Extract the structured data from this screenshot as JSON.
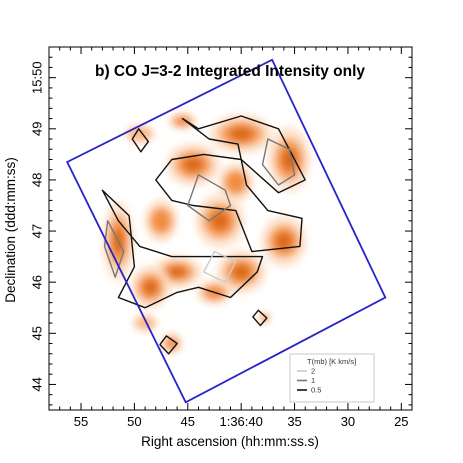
{
  "chart_data": {
    "type": "heatmap",
    "title": "b) CO J=3-2 Integrated Intensity only",
    "xlabel": "Right ascension (hh:mm:ss.s)",
    "ylabel": "Declination (ddd:mm:ss)",
    "x_ticks": [
      "55",
      "50",
      "45",
      "1:36:40",
      "35",
      "30",
      "25"
    ],
    "y_ticks": [
      "44",
      "45",
      "46",
      "47",
      "48",
      "49",
      "15:50"
    ],
    "x_tick_seconds": [
      55,
      50,
      45,
      40,
      35,
      30,
      25
    ],
    "y_tick_minutes": [
      44,
      45,
      46,
      47,
      48,
      49,
      50
    ],
    "xlim_seconds": [
      58,
      24
    ],
    "ylim_minutes": [
      43.5,
      50.6
    ],
    "x_axis_reversed": true,
    "legend": {
      "title": "T(mb) [K km/s]",
      "placement": "bottom-right",
      "entries": [
        {
          "label": "2",
          "color": "#cccccc"
        },
        {
          "label": "1",
          "color": "#777777"
        },
        {
          "label": "0.5",
          "color": "#111111"
        }
      ]
    },
    "colormap": [
      "#fde3cc",
      "#f9b57e",
      "#f08a3c",
      "#d8650f"
    ],
    "footprint": {
      "vertices_ra_dec": [
        [
          56.3,
          48.35
        ],
        [
          37.1,
          50.35
        ],
        [
          26.5,
          45.7
        ],
        [
          45.2,
          43.65
        ]
      ],
      "color": "#2424c8"
    },
    "emission_regions": [
      {
        "center": [
          49.5,
          48.9
        ],
        "size": [
          2.2,
          0.28
        ],
        "level": 1
      },
      {
        "center": [
          45.5,
          49.15
        ],
        "size": [
          2.0,
          0.25
        ],
        "level": 2
      },
      {
        "center": [
          40.0,
          48.9
        ],
        "size": [
          4.5,
          0.55
        ],
        "level": 3
      },
      {
        "center": [
          35.5,
          48.4
        ],
        "size": [
          3.0,
          0.9
        ],
        "level": 3
      },
      {
        "center": [
          44.5,
          48.3
        ],
        "size": [
          3.8,
          0.6
        ],
        "level": 3
      },
      {
        "center": [
          40.5,
          47.95
        ],
        "size": [
          2.5,
          0.55
        ],
        "level": 2
      },
      {
        "center": [
          42.0,
          47.2
        ],
        "size": [
          3.5,
          0.75
        ],
        "level": 3
      },
      {
        "center": [
          47.5,
          47.2
        ],
        "size": [
          2.4,
          0.6
        ],
        "level": 2
      },
      {
        "center": [
          51.5,
          46.8
        ],
        "size": [
          2.2,
          1.1
        ],
        "level": 3
      },
      {
        "center": [
          36.0,
          46.8
        ],
        "size": [
          3.2,
          0.7
        ],
        "level": 3
      },
      {
        "center": [
          46.0,
          46.2
        ],
        "size": [
          3.5,
          0.45
        ],
        "level": 3
      },
      {
        "center": [
          40.0,
          46.2
        ],
        "size": [
          3.5,
          0.6
        ],
        "level": 3
      },
      {
        "center": [
          42.5,
          45.8
        ],
        "size": [
          2.5,
          0.35
        ],
        "level": 2
      },
      {
        "center": [
          48.5,
          45.9
        ],
        "size": [
          2.8,
          0.6
        ],
        "level": 3
      },
      {
        "center": [
          49.0,
          45.2
        ],
        "size": [
          1.8,
          0.25
        ],
        "level": 1
      },
      {
        "center": [
          37.8,
          45.3
        ],
        "size": [
          0.8,
          0.18
        ],
        "level": 2
      },
      {
        "center": [
          46.5,
          44.8
        ],
        "size": [
          1.5,
          0.3
        ],
        "level": 2
      }
    ],
    "contours": [
      {
        "points": [
          [
            45.5,
            49.2
          ],
          [
            44.0,
            49.0
          ],
          [
            40.0,
            49.25
          ],
          [
            36.5,
            49.0
          ],
          [
            34.0,
            48.0
          ],
          [
            36.5,
            47.75
          ],
          [
            40.0,
            48.4
          ],
          [
            43.5,
            48.5
          ],
          [
            46.5,
            48.4
          ],
          [
            48.0,
            48.0
          ],
          [
            46.5,
            47.6
          ],
          [
            44.5,
            47.5
          ],
          [
            40.5,
            47.4
          ],
          [
            39.0,
            46.6
          ],
          [
            34.5,
            46.7
          ],
          [
            34.3,
            47.25
          ],
          [
            37.5,
            47.4
          ],
          [
            39.5,
            47.9
          ],
          [
            40.3,
            48.7
          ],
          [
            43.0,
            48.8
          ],
          [
            45.5,
            49.2
          ]
        ],
        "level": "0.5"
      },
      {
        "points": [
          [
            53.0,
            47.8
          ],
          [
            50.5,
            47.3
          ],
          [
            50.0,
            46.3
          ],
          [
            51.5,
            45.7
          ],
          [
            49.0,
            45.5
          ],
          [
            46.0,
            45.8
          ],
          [
            44.0,
            45.9
          ],
          [
            41.0,
            45.7
          ],
          [
            38.5,
            46.2
          ],
          [
            38.0,
            46.5
          ],
          [
            42.0,
            46.5
          ],
          [
            46.5,
            46.5
          ],
          [
            49.5,
            46.7
          ],
          [
            51.5,
            47.2
          ],
          [
            53.0,
            47.8
          ]
        ],
        "level": "0.5"
      },
      {
        "points": [
          [
            44.0,
            48.1
          ],
          [
            41.5,
            47.8
          ],
          [
            41.0,
            47.5
          ],
          [
            43.0,
            47.2
          ],
          [
            45.0,
            47.5
          ],
          [
            44.0,
            48.1
          ]
        ],
        "level": "1"
      },
      {
        "points": [
          [
            37.5,
            48.8
          ],
          [
            35.5,
            48.6
          ],
          [
            35.0,
            48.1
          ],
          [
            36.5,
            47.9
          ],
          [
            38.0,
            48.3
          ],
          [
            37.5,
            48.8
          ]
        ],
        "level": "1"
      },
      {
        "points": [
          [
            42.5,
            46.6
          ],
          [
            40.5,
            46.4
          ],
          [
            41.5,
            46.0
          ],
          [
            43.5,
            46.2
          ],
          [
            42.5,
            46.6
          ]
        ],
        "level": "2"
      },
      {
        "points": [
          [
            52.5,
            47.2
          ],
          [
            51.0,
            46.6
          ],
          [
            51.8,
            46.1
          ],
          [
            52.8,
            46.7
          ],
          [
            52.5,
            47.2
          ]
        ],
        "level": "1"
      },
      {
        "points": [
          [
            49.6,
            49.0
          ],
          [
            48.7,
            48.75
          ],
          [
            49.4,
            48.55
          ],
          [
            50.2,
            48.8
          ],
          [
            49.6,
            49.0
          ]
        ],
        "level": "0.5"
      },
      {
        "points": [
          [
            38.4,
            45.45
          ],
          [
            37.6,
            45.3
          ],
          [
            38.2,
            45.15
          ],
          [
            38.9,
            45.32
          ],
          [
            38.4,
            45.45
          ]
        ],
        "level": "0.5"
      },
      {
        "points": [
          [
            47.0,
            44.95
          ],
          [
            46.0,
            44.8
          ],
          [
            46.8,
            44.6
          ],
          [
            47.6,
            44.78
          ],
          [
            47.0,
            44.95
          ]
        ],
        "level": "0.5"
      }
    ]
  }
}
